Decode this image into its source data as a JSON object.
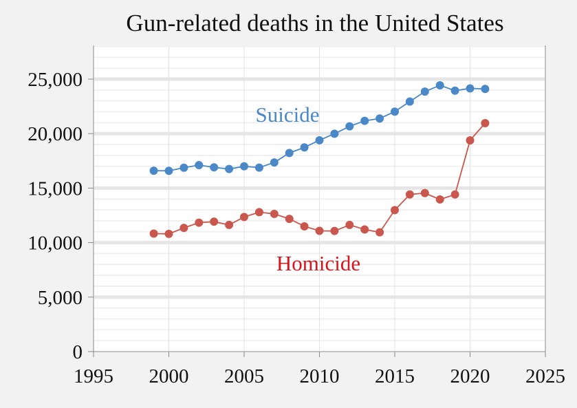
{
  "chart_data": {
    "type": "line",
    "title": "Gun-related deaths in the United States",
    "xlabel": "",
    "ylabel": "",
    "xlim": [
      1995,
      2025
    ],
    "ylim": [
      0,
      25000
    ],
    "x_ticks": [
      "1995",
      "2000",
      "2005",
      "2010",
      "2015",
      "2020",
      "2025"
    ],
    "y_ticks": [
      "0",
      "5,000",
      "10,000",
      "15,000",
      "20,000",
      "25,000"
    ],
    "grid": true,
    "x": [
      1999,
      2000,
      2001,
      2002,
      2003,
      2004,
      2005,
      2006,
      2007,
      2008,
      2009,
      2010,
      2011,
      2012,
      2013,
      2014,
      2015,
      2016,
      2017,
      2018,
      2019,
      2020,
      2021
    ],
    "series": [
      {
        "name": "Suicide",
        "color": "#4a88c7",
        "label_color": "#4a88c7",
        "values": [
          16599,
          16586,
          16869,
          17108,
          16907,
          16750,
          17002,
          16883,
          17352,
          18223,
          18735,
          19392,
          19990,
          20666,
          21175,
          21386,
          22018,
          22938,
          23854,
          24432,
          23941,
          24150,
          24100
        ]
      },
      {
        "name": "Homicide",
        "color": "#c9574e",
        "label_color": "#d9141c",
        "values": [
          10828,
          10801,
          11348,
          11829,
          11920,
          11624,
          12352,
          12791,
          12632,
          12179,
          11493,
          11078,
          11068,
          11622,
          11208,
          10945,
          12979,
          14415,
          14542,
          13958,
          14414,
          19384,
          20958
        ]
      }
    ]
  }
}
